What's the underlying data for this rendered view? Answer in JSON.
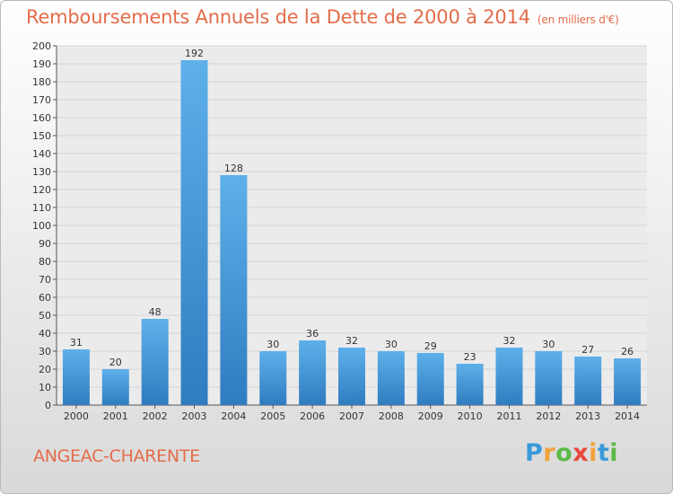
{
  "title": {
    "main": "Remboursements Annuels de la Dette de 2000 à 2014",
    "unit": "(en milliers d'€)"
  },
  "commune": "ANGEAC-CHARENTE",
  "logo": [
    "P",
    "r",
    "o",
    "x",
    "i",
    "t",
    "i"
  ],
  "colors": {
    "title": "#e46c4a",
    "bar_light": "#5eb0ea",
    "bar_dark": "#2f7cc0",
    "grid": "#d4d4d4"
  },
  "chart_data": {
    "type": "bar",
    "categories": [
      "2000",
      "2001",
      "2002",
      "2003",
      "2004",
      "2005",
      "2006",
      "2007",
      "2008",
      "2009",
      "2010",
      "2011",
      "2012",
      "2013",
      "2014"
    ],
    "values": [
      31,
      20,
      48,
      192,
      128,
      30,
      36,
      32,
      30,
      29,
      23,
      32,
      30,
      27,
      26
    ],
    "ylim": [
      0,
      200
    ],
    "ytick_step": 10,
    "grid": true,
    "title": "Remboursements Annuels de la Dette de 2000 à 2014",
    "xlabel": "",
    "ylabel": ""
  }
}
